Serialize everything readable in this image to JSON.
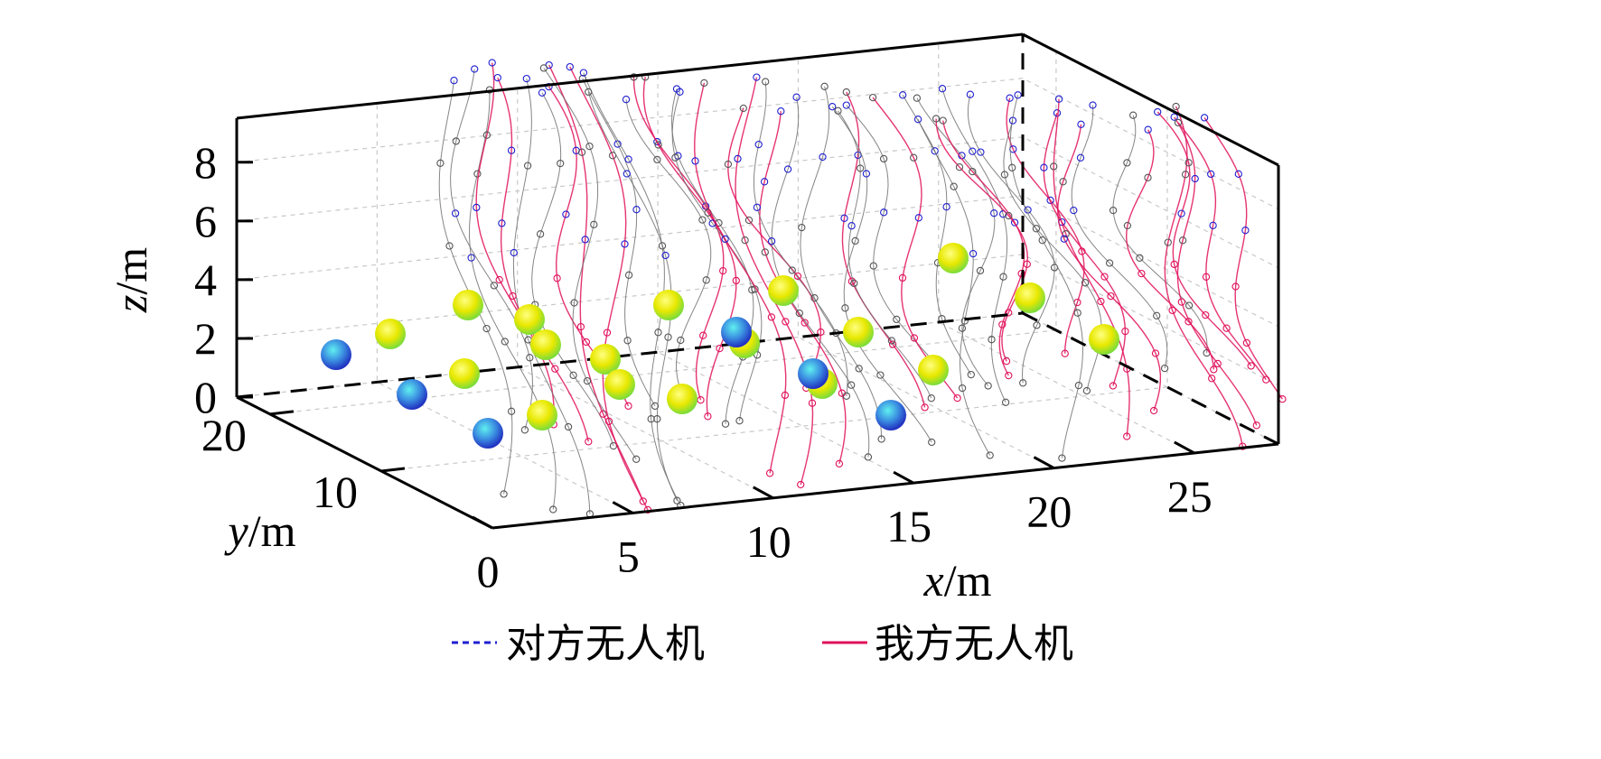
{
  "chart_data": {
    "type": "scatter",
    "projection": "3d",
    "title": "",
    "axes": {
      "x": {
        "label_var": "x",
        "label_unit": "/m",
        "ticks": [
          0,
          5,
          10,
          15,
          20,
          25
        ],
        "range": [
          0,
          28
        ]
      },
      "y": {
        "label_var": "y",
        "label_unit": "/m",
        "ticks": [
          10,
          20
        ],
        "range": [
          0,
          23
        ]
      },
      "z": {
        "label_var": "z",
        "label_unit": "/m",
        "ticks": [
          0,
          2,
          4,
          6,
          8
        ],
        "range": [
          0,
          9.5
        ]
      }
    },
    "grid": true,
    "legend": {
      "placement": "bottom-center",
      "items": [
        {
          "label": "对方无人机",
          "color": "#1f1fd0",
          "style": "dashed"
        },
        {
          "label": "我方无人机",
          "color": "#e0105a",
          "style": "solid"
        }
      ]
    },
    "colors": {
      "yellow_sphere": "#e8e800",
      "green_sphere": "#7cdc3c",
      "blue_sphere": "#2a5cd8",
      "cyan_sphere": "#40d8d8",
      "gray_marker": "#555555"
    }
  }
}
